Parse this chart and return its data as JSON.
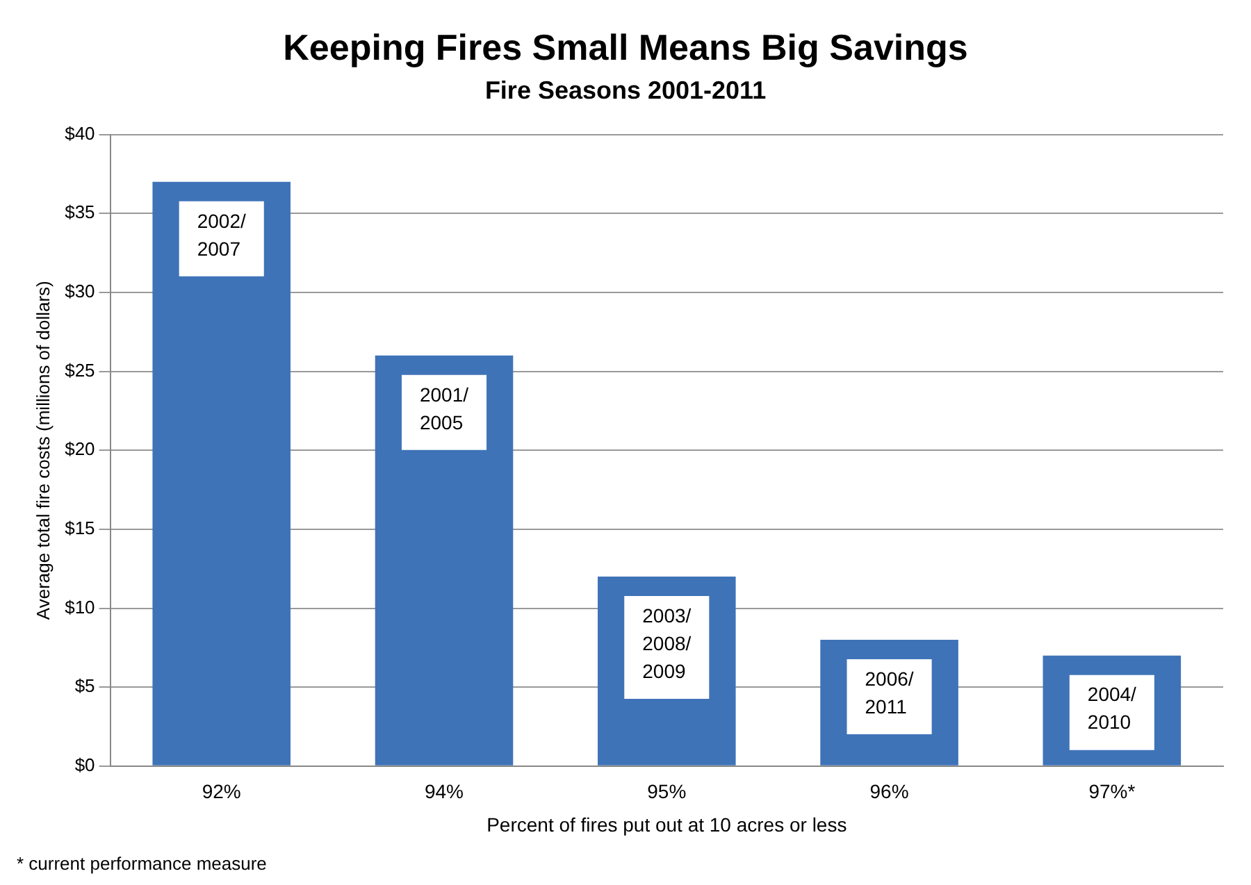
{
  "chart_data": {
    "type": "bar",
    "title": "Keeping Fires Small Means Big Savings",
    "subtitle": "Fire Seasons 2001-2011",
    "xlabel": "Percent of fires put out at 10 acres or less",
    "ylabel": "Average total fire costs (millions of dollars)",
    "categories": [
      "92%",
      "94%",
      "95%",
      "96%",
      "97%*"
    ],
    "values": [
      37,
      26,
      12,
      8,
      7
    ],
    "color": "#3f73b8",
    "ylim": [
      0,
      40
    ],
    "yticks": [
      {
        "value": 0,
        "label": "$0"
      },
      {
        "value": 5,
        "label": "$5"
      },
      {
        "value": 10,
        "label": "$10"
      },
      {
        "value": 15,
        "label": "$15"
      },
      {
        "value": 20,
        "label": "$20"
      },
      {
        "value": 25,
        "label": "$25"
      },
      {
        "value": 30,
        "label": "$30"
      },
      {
        "value": 35,
        "label": "$35"
      },
      {
        "value": 40,
        "label": "$40"
      }
    ],
    "grid": "y",
    "legend": false,
    "annotations": [
      {
        "text": "2002/\n2007",
        "x": "92%",
        "y": 37
      },
      {
        "text": "2001/\n2005",
        "x": "94%",
        "y": 26
      },
      {
        "text": "2003/\n2008/\n2009",
        "x": "95%",
        "y": 12
      },
      {
        "text": "2006/\n2011",
        "x": "96%",
        "y": 8
      },
      {
        "text": "2004/\n2010",
        "x": "97%*",
        "y": 7
      },
      "* current performance measure"
    ]
  }
}
